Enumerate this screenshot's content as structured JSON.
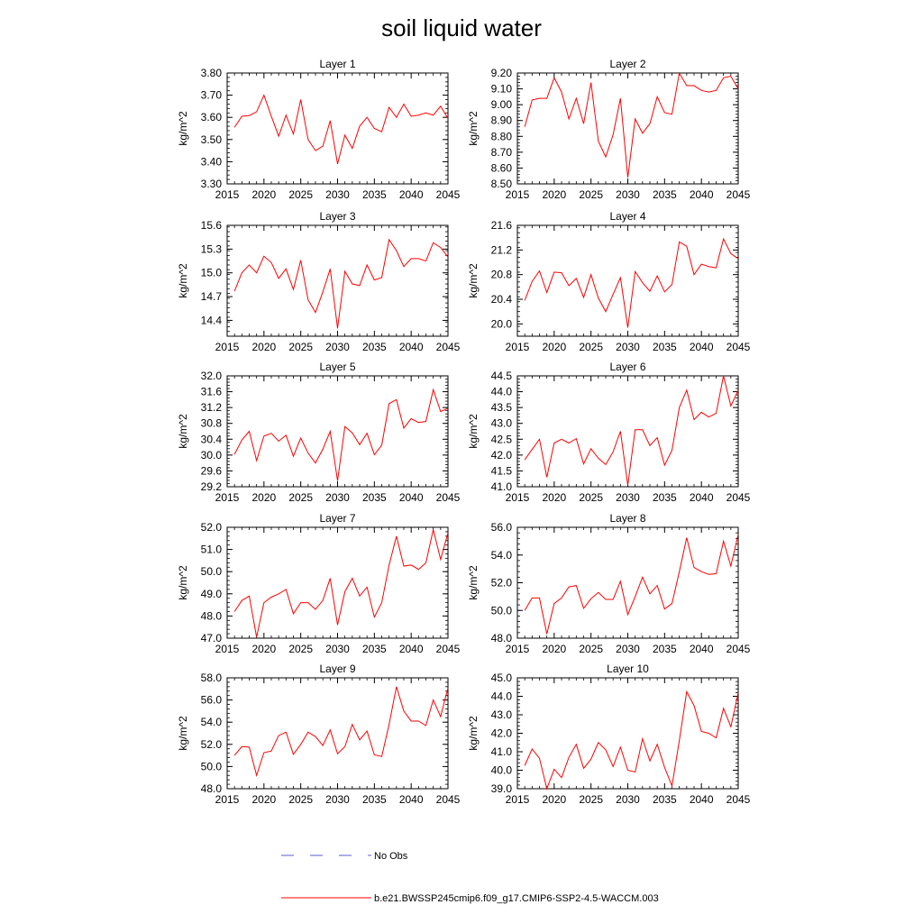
{
  "title": "soil liquid water",
  "legend": {
    "no_obs_label": "No Obs",
    "no_obs_color": "#5a5ad0",
    "series_label": "b.e21.BWSSP245cmip6.f09_g17.CMIP6-SSP2-4.5-WACCM.003",
    "series_color": "#ff0000"
  },
  "x_years": [
    2016,
    2017,
    2018,
    2019,
    2020,
    2021,
    2022,
    2023,
    2024,
    2025,
    2026,
    2027,
    2028,
    2029,
    2030,
    2031,
    2032,
    2033,
    2034,
    2035,
    2036,
    2037,
    2038,
    2039,
    2040,
    2041,
    2042,
    2043,
    2044,
    2045
  ],
  "chart_data": [
    {
      "type": "line",
      "title": "Layer 1",
      "ylabel": "kg/m^2",
      "xlim": [
        2015,
        2045
      ],
      "ylim": [
        3.3,
        3.8
      ],
      "xticks": [
        2015,
        2020,
        2025,
        2030,
        2035,
        2040,
        2045
      ],
      "xtick_labels": [
        "2015",
        "2020",
        "2025",
        "2030",
        "2035",
        "2040",
        "2045"
      ],
      "yticks": [
        3.3,
        3.4,
        3.5,
        3.6,
        3.7,
        3.8
      ],
      "ytick_labels": [
        "3.30",
        "3.40",
        "3.50",
        "3.60",
        "3.70",
        "3.80"
      ],
      "values": [
        3.555,
        3.605,
        3.608,
        3.625,
        3.7,
        3.605,
        3.515,
        3.61,
        3.525,
        3.68,
        3.5,
        3.45,
        3.47,
        3.585,
        3.39,
        3.52,
        3.46,
        3.56,
        3.6,
        3.55,
        3.535,
        3.645,
        3.6,
        3.66,
        3.605,
        3.61,
        3.62,
        3.61,
        3.65,
        3.595
      ]
    },
    {
      "type": "line",
      "title": "Layer 2",
      "ylabel": "kg/m^2",
      "xlim": [
        2015,
        2045
      ],
      "ylim": [
        8.5,
        9.2
      ],
      "xticks": [
        2015,
        2020,
        2025,
        2030,
        2035,
        2040,
        2045
      ],
      "xtick_labels": [
        "2015",
        "2020",
        "2025",
        "2030",
        "2035",
        "2040",
        "2045"
      ],
      "yticks": [
        8.5,
        8.6,
        8.7,
        8.8,
        8.9,
        9.0,
        9.1,
        9.2
      ],
      "ytick_labels": [
        "8.50",
        "8.60",
        "8.70",
        "8.80",
        "8.90",
        "9.00",
        "9.10",
        "9.20"
      ],
      "values": [
        8.86,
        9.03,
        9.04,
        9.04,
        9.17,
        9.08,
        8.91,
        9.04,
        8.88,
        9.14,
        8.77,
        8.67,
        8.81,
        9.04,
        8.54,
        8.91,
        8.82,
        8.88,
        9.05,
        8.95,
        8.94,
        9.2,
        9.12,
        9.12,
        9.09,
        9.08,
        9.09,
        9.17,
        9.18,
        9.1
      ]
    },
    {
      "type": "line",
      "title": "Layer 3",
      "ylabel": "kg/m^2",
      "xlim": [
        2015,
        2045
      ],
      "ylim": [
        14.2,
        15.6
      ],
      "xticks": [
        2015,
        2020,
        2025,
        2030,
        2035,
        2040,
        2045
      ],
      "xtick_labels": [
        "2015",
        "2020",
        "2025",
        "2030",
        "2035",
        "2040",
        "2045"
      ],
      "yticks": [
        14.4,
        14.7,
        15.0,
        15.3,
        15.6
      ],
      "ytick_labels": [
        "14.4",
        "14.7",
        "15.0",
        "15.3",
        "15.6"
      ],
      "values": [
        14.77,
        15.0,
        15.1,
        15.0,
        15.21,
        15.13,
        14.93,
        15.05,
        14.79,
        15.16,
        14.66,
        14.5,
        14.76,
        15.05,
        14.3,
        15.02,
        14.86,
        14.84,
        15.1,
        14.91,
        14.94,
        15.42,
        15.28,
        15.08,
        15.18,
        15.18,
        15.15,
        15.38,
        15.32,
        15.2
      ]
    },
    {
      "type": "line",
      "title": "Layer 4",
      "ylabel": "kg/m^2",
      "xlim": [
        2015,
        2045
      ],
      "ylim": [
        19.8,
        21.6
      ],
      "xticks": [
        2015,
        2020,
        2025,
        2030,
        2035,
        2040,
        2045
      ],
      "xtick_labels": [
        "2015",
        "2020",
        "2025",
        "2030",
        "2035",
        "2040",
        "2045"
      ],
      "yticks": [
        20.0,
        20.4,
        20.8,
        21.2,
        21.6
      ],
      "ytick_labels": [
        "20.0",
        "20.4",
        "20.8",
        "21.2",
        "21.6"
      ],
      "values": [
        20.38,
        20.69,
        20.86,
        20.51,
        20.84,
        20.83,
        20.62,
        20.74,
        20.43,
        20.8,
        20.42,
        20.2,
        20.48,
        20.75,
        19.94,
        20.85,
        20.67,
        20.53,
        20.78,
        20.52,
        20.64,
        21.33,
        21.26,
        20.8,
        20.97,
        20.93,
        20.91,
        21.38,
        21.14,
        21.06
      ]
    },
    {
      "type": "line",
      "title": "Layer 5",
      "ylabel": "kg/m^2",
      "xlim": [
        2015,
        2045
      ],
      "ylim": [
        29.2,
        32.0
      ],
      "xticks": [
        2015,
        2020,
        2025,
        2030,
        2035,
        2040,
        2045
      ],
      "xtick_labels": [
        "2015",
        "2020",
        "2025",
        "2030",
        "2035",
        "2040",
        "2045"
      ],
      "yticks": [
        29.2,
        29.6,
        30.0,
        30.4,
        30.8,
        31.2,
        31.6,
        32.0
      ],
      "ytick_labels": [
        "29.2",
        "29.6",
        "30.0",
        "30.4",
        "30.8",
        "31.2",
        "31.6",
        "32.0"
      ],
      "values": [
        30.02,
        30.38,
        30.6,
        29.86,
        30.48,
        30.55,
        30.35,
        30.5,
        29.97,
        30.43,
        30.05,
        29.8,
        30.15,
        30.6,
        29.35,
        30.72,
        30.56,
        30.26,
        30.55,
        30.01,
        30.25,
        31.3,
        31.4,
        30.68,
        30.92,
        30.82,
        30.85,
        31.65,
        31.1,
        31.18
      ]
    },
    {
      "type": "line",
      "title": "Layer 6",
      "ylabel": "kg/m^2",
      "xlim": [
        2015,
        2045
      ],
      "ylim": [
        41.0,
        44.5
      ],
      "xticks": [
        2015,
        2020,
        2025,
        2030,
        2035,
        2040,
        2045
      ],
      "xtick_labels": [
        "2015",
        "2020",
        "2025",
        "2030",
        "2035",
        "2040",
        "2045"
      ],
      "yticks": [
        41.0,
        41.5,
        42.0,
        42.5,
        43.0,
        43.5,
        44.0,
        44.5
      ],
      "ytick_labels": [
        "41.0",
        "41.5",
        "42.0",
        "42.5",
        "43.0",
        "43.5",
        "44.0",
        "44.5"
      ],
      "values": [
        41.85,
        42.18,
        42.5,
        41.3,
        42.38,
        42.5,
        42.38,
        42.52,
        41.72,
        42.2,
        41.9,
        41.7,
        42.1,
        42.75,
        41.05,
        42.8,
        42.8,
        42.3,
        42.55,
        41.68,
        42.15,
        43.5,
        44.05,
        43.12,
        43.35,
        43.2,
        43.32,
        44.5,
        43.55,
        44.05
      ]
    },
    {
      "type": "line",
      "title": "Layer 7",
      "ylabel": "kg/m^2",
      "xlim": [
        2015,
        2045
      ],
      "ylim": [
        47.0,
        52.0
      ],
      "xticks": [
        2015,
        2020,
        2025,
        2030,
        2035,
        2040,
        2045
      ],
      "xtick_labels": [
        "2015",
        "2020",
        "2025",
        "2030",
        "2035",
        "2040",
        "2045"
      ],
      "yticks": [
        47.0,
        48.0,
        49.0,
        50.0,
        51.0,
        52.0
      ],
      "ytick_labels": [
        "47.0",
        "48.0",
        "49.0",
        "50.0",
        "51.0",
        "52.0"
      ],
      "values": [
        48.2,
        48.7,
        48.9,
        47.05,
        48.6,
        48.85,
        49.0,
        49.2,
        48.1,
        48.6,
        48.6,
        48.3,
        48.7,
        49.7,
        47.6,
        49.1,
        49.7,
        48.9,
        49.3,
        47.95,
        48.6,
        50.3,
        51.6,
        50.25,
        50.3,
        50.1,
        50.4,
        51.9,
        50.55,
        51.75
      ]
    },
    {
      "type": "line",
      "title": "Layer 8",
      "ylabel": "kg/m^2",
      "xlim": [
        2015,
        2045
      ],
      "ylim": [
        48.0,
        56.0
      ],
      "xticks": [
        2015,
        2020,
        2025,
        2030,
        2035,
        2040,
        2045
      ],
      "xtick_labels": [
        "2015",
        "2020",
        "2025",
        "2030",
        "2035",
        "2040",
        "2045"
      ],
      "yticks": [
        48.0,
        50.0,
        52.0,
        54.0,
        56.0
      ],
      "ytick_labels": [
        "48.0",
        "50.0",
        "52.0",
        "54.0",
        "56.0"
      ],
      "values": [
        50.0,
        50.9,
        50.9,
        48.3,
        50.5,
        50.9,
        51.7,
        51.8,
        50.15,
        50.85,
        51.3,
        50.8,
        50.8,
        52.1,
        49.7,
        51.0,
        52.4,
        51.2,
        51.8,
        50.1,
        50.5,
        52.8,
        55.25,
        53.1,
        52.8,
        52.6,
        52.65,
        55.0,
        53.2,
        55.5
      ]
    },
    {
      "type": "line",
      "title": "Layer 9",
      "ylabel": "kg/m^2",
      "xlim": [
        2015,
        2045
      ],
      "ylim": [
        48.0,
        58.0
      ],
      "xticks": [
        2015,
        2020,
        2025,
        2030,
        2035,
        2040,
        2045
      ],
      "xtick_labels": [
        "2015",
        "2020",
        "2025",
        "2030",
        "2035",
        "2040",
        "2045"
      ],
      "yticks": [
        48.0,
        50.0,
        52.0,
        54.0,
        56.0,
        58.0
      ],
      "ytick_labels": [
        "48.0",
        "50.0",
        "52.0",
        "54.0",
        "56.0",
        "58.0"
      ],
      "values": [
        51.0,
        51.8,
        51.75,
        49.2,
        51.25,
        51.4,
        52.8,
        53.1,
        51.1,
        52.0,
        53.1,
        52.7,
        51.9,
        53.3,
        51.15,
        51.8,
        53.8,
        52.4,
        53.2,
        51.05,
        50.9,
        53.8,
        57.2,
        55.0,
        54.1,
        54.1,
        53.7,
        56.0,
        54.5,
        57.1
      ]
    },
    {
      "type": "line",
      "title": "Layer 10",
      "ylabel": "kg/m^2",
      "xlim": [
        2015,
        2045
      ],
      "ylim": [
        39.0,
        45.0
      ],
      "xticks": [
        2015,
        2020,
        2025,
        2030,
        2035,
        2040,
        2045
      ],
      "xtick_labels": [
        "2015",
        "2020",
        "2025",
        "2030",
        "2035",
        "2040",
        "2045"
      ],
      "yticks": [
        39.0,
        40.0,
        41.0,
        42.0,
        43.0,
        44.0,
        45.0
      ],
      "ytick_labels": [
        "39.0",
        "40.0",
        "41.0",
        "42.0",
        "43.0",
        "44.0",
        "45.0"
      ],
      "values": [
        40.25,
        41.15,
        40.65,
        39.0,
        40.05,
        39.6,
        40.7,
        41.4,
        40.1,
        40.6,
        41.5,
        41.1,
        40.2,
        41.25,
        40.0,
        39.9,
        41.7,
        40.5,
        41.4,
        40.15,
        39.15,
        41.6,
        44.25,
        43.5,
        42.1,
        42.0,
        41.75,
        43.35,
        42.35,
        44.2
      ]
    }
  ]
}
